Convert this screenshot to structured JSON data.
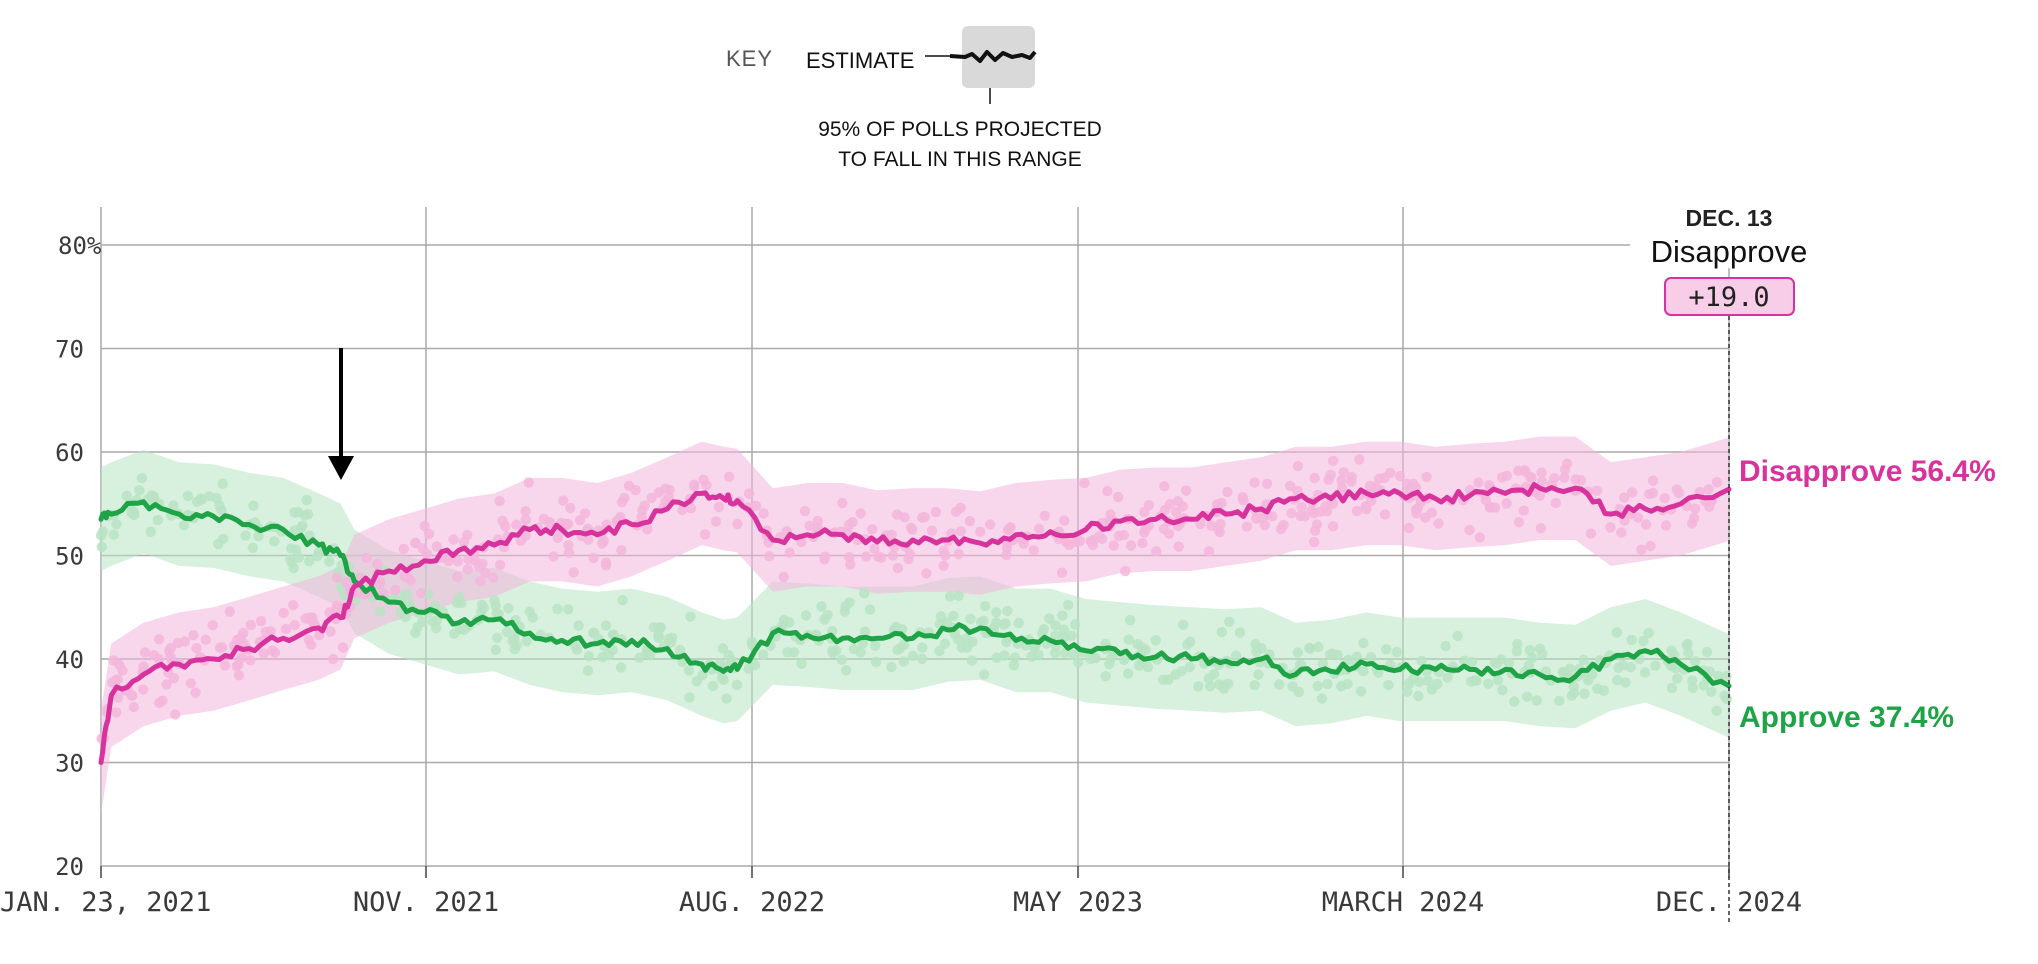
{
  "key": {
    "title": "KEY",
    "estimate_label": "ESTIMATE",
    "range_label_line1": "95% OF POLLS PROJECTED",
    "range_label_line2": "TO FALL IN THIS RANGE"
  },
  "colors": {
    "approve": "#1fa347",
    "approve_light": "#b8e3c3",
    "disapprove": "#d8329d",
    "disapprove_light": "#f3b6dc",
    "grid": "#a9a9a9"
  },
  "latest": {
    "date": "DEC. 13",
    "leader": "Disapprove",
    "margin": "+19.0",
    "approve_label": "Approve 37.4%",
    "disapprove_label": "Disapprove 56.4%"
  },
  "chart_data": {
    "type": "line",
    "x_range": [
      "2021-01-23",
      "2024-12-13"
    ],
    "ylim": [
      20,
      80
    ],
    "y_ticks": [
      "80%",
      "70",
      "60",
      "50",
      "40",
      "30",
      "20"
    ],
    "x_ticks": [
      "JAN. 23, 2021",
      "NOV. 2021",
      "AUG. 2022",
      "MAY 2023",
      "MARCH 2024",
      "DEC. 2024"
    ],
    "annotation": {
      "type": "arrow",
      "x": "2021-08-20",
      "y": 57
    },
    "x": [
      "2021-01-23",
      "2021-02-01",
      "2021-03-01",
      "2021-04-01",
      "2021-05-01",
      "2021-06-01",
      "2021-07-01",
      "2021-08-01",
      "2021-08-20",
      "2021-09-01",
      "2021-10-01",
      "2021-11-01",
      "2021-12-01",
      "2022-01-01",
      "2022-02-01",
      "2022-03-01",
      "2022-04-01",
      "2022-05-01",
      "2022-06-01",
      "2022-07-01",
      "2022-07-20",
      "2022-08-01",
      "2022-09-01",
      "2022-10-01",
      "2022-11-01",
      "2022-12-01",
      "2023-01-01",
      "2023-02-01",
      "2023-03-01",
      "2023-04-01",
      "2023-05-01",
      "2023-06-01",
      "2023-07-01",
      "2023-08-01",
      "2023-09-01",
      "2023-10-01",
      "2023-11-01",
      "2023-12-01",
      "2024-01-01",
      "2024-02-01",
      "2024-03-01",
      "2024-04-01",
      "2024-05-01",
      "2024-06-01",
      "2024-07-01",
      "2024-08-01",
      "2024-09-01",
      "2024-10-01",
      "2024-11-01",
      "2024-12-13"
    ],
    "series": [
      {
        "name": "Approve",
        "values": [
          53.5,
          54.0,
          55.2,
          54.0,
          53.8,
          53.0,
          52.5,
          51.0,
          50.0,
          47.5,
          45.5,
          44.5,
          43.5,
          43.8,
          42.5,
          41.8,
          41.5,
          41.8,
          41.0,
          39.5,
          38.8,
          39.0,
          42.5,
          42.3,
          42.0,
          42.0,
          42.0,
          42.8,
          43.0,
          41.8,
          41.8,
          40.8,
          40.5,
          40.2,
          40.0,
          39.8,
          40.0,
          38.5,
          38.8,
          39.5,
          39.0,
          39.0,
          39.0,
          39.0,
          38.5,
          38.3,
          40.0,
          40.8,
          39.5,
          37.4
        ]
      },
      {
        "name": "Disapprove",
        "values": [
          30.0,
          36.5,
          38.5,
          39.5,
          40.0,
          41.0,
          42.0,
          43.0,
          44.0,
          47.0,
          48.5,
          49.5,
          50.5,
          51.0,
          52.5,
          52.5,
          52.0,
          53.0,
          54.5,
          56.0,
          55.5,
          55.3,
          51.5,
          52.0,
          52.0,
          51.3,
          51.5,
          51.5,
          51.2,
          52.0,
          52.3,
          52.5,
          53.3,
          53.5,
          53.5,
          54.0,
          54.5,
          55.5,
          55.5,
          56.0,
          56.0,
          55.5,
          55.8,
          56.0,
          56.5,
          56.5,
          54.0,
          54.5,
          55.0,
          56.4
        ]
      }
    ]
  }
}
